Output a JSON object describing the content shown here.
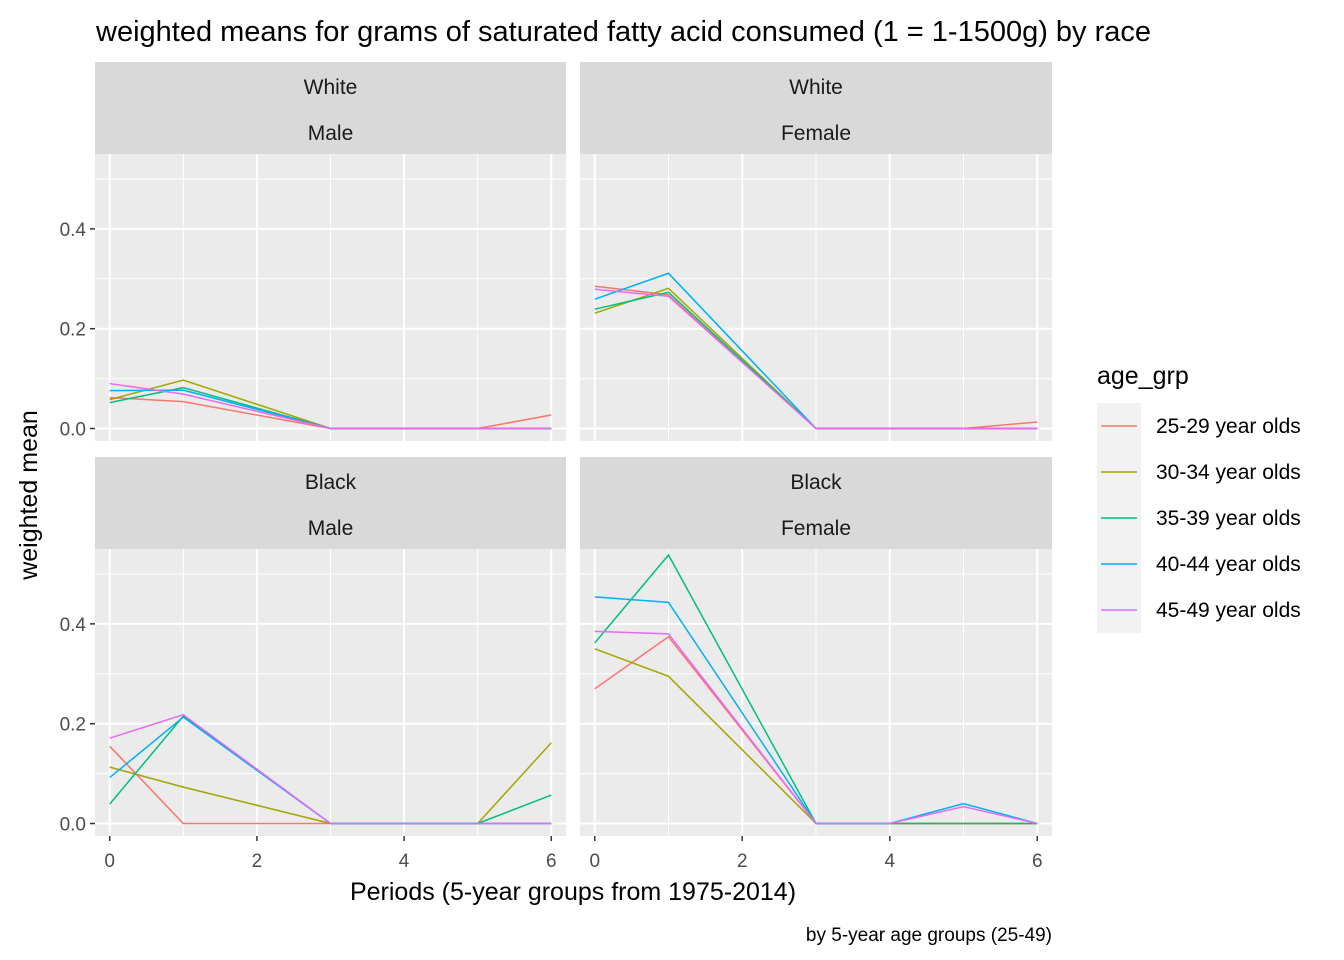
{
  "chart_data": {
    "type": "line",
    "title": "weighted means for grams of saturated fatty acid consumed (1 = 1-1500g) by race",
    "xlabel": "Periods (5-year groups from 1975-2014)",
    "ylabel": "weighted mean",
    "caption": "by 5-year age groups (25-49)",
    "xlim": [
      -0.2,
      6.2
    ],
    "ylim": [
      -0.025,
      0.55
    ],
    "x_ticks": [
      0,
      2,
      4,
      6
    ],
    "x_tick_labels": [
      "0",
      "2",
      "4",
      "6"
    ],
    "y_ticks": [
      0,
      0.2,
      0.4
    ],
    "y_tick_labels": [
      "0.0",
      "0.2",
      "0.4"
    ],
    "grid": true,
    "legend": {
      "title": "age_grp",
      "position": "right",
      "entries": [
        "25-29 year olds",
        "30-34 year olds",
        "35-39 year olds",
        "40-44 year olds",
        "45-49 year olds"
      ]
    },
    "colors": {
      "25-29 year olds": "#F8766D",
      "30-34 year olds": "#A3A500",
      "35-39 year olds": "#00BF7D",
      "40-44 year olds": "#00B0F6",
      "45-49 year olds": "#E76BF3"
    },
    "panels": [
      {
        "race": "White",
        "sex": "Male",
        "series": [
          {
            "name": "25-29 year olds",
            "x": [
              0,
              1,
              3,
              5,
              6
            ],
            "y": [
              0.062,
              0.054,
              0.0,
              0.0,
              0.027
            ]
          },
          {
            "name": "30-34 year olds",
            "x": [
              0,
              1,
              3,
              6
            ],
            "y": [
              0.058,
              0.097,
              0.0,
              0.0
            ]
          },
          {
            "name": "35-39 year olds",
            "x": [
              0,
              1,
              3,
              6
            ],
            "y": [
              0.052,
              0.082,
              0.0,
              0.0
            ]
          },
          {
            "name": "40-44 year olds",
            "x": [
              0,
              1,
              3,
              6
            ],
            "y": [
              0.076,
              0.077,
              0.0,
              0.0
            ]
          },
          {
            "name": "45-49 year olds",
            "x": [
              0,
              1,
              3,
              6
            ],
            "y": [
              0.09,
              0.069,
              0.0,
              0.0
            ]
          }
        ]
      },
      {
        "race": "White",
        "sex": "Female",
        "series": [
          {
            "name": "25-29 year olds",
            "x": [
              0,
              1,
              3,
              5,
              6
            ],
            "y": [
              0.285,
              0.268,
              0.0,
              0.0,
              0.013
            ]
          },
          {
            "name": "30-34 year olds",
            "x": [
              0,
              1,
              3,
              6
            ],
            "y": [
              0.231,
              0.281,
              0.0,
              0.0
            ]
          },
          {
            "name": "35-39 year olds",
            "x": [
              0,
              1,
              3,
              6
            ],
            "y": [
              0.239,
              0.273,
              0.0,
              0.0
            ]
          },
          {
            "name": "40-44 year olds",
            "x": [
              0,
              1,
              3,
              6
            ],
            "y": [
              0.259,
              0.311,
              0.0,
              0.0
            ]
          },
          {
            "name": "45-49 year olds",
            "x": [
              0,
              1,
              3,
              6
            ],
            "y": [
              0.279,
              0.265,
              0.0,
              0.0
            ]
          }
        ]
      },
      {
        "race": "Black",
        "sex": "Male",
        "series": [
          {
            "name": "25-29 year olds",
            "x": [
              0,
              1,
              3,
              6
            ],
            "y": [
              0.155,
              0.0,
              0.0,
              0.0
            ]
          },
          {
            "name": "30-34 year olds",
            "x": [
              0,
              1,
              3,
              5,
              6
            ],
            "y": [
              0.113,
              0.073,
              0.0,
              0.0,
              0.162
            ]
          },
          {
            "name": "35-39 year olds",
            "x": [
              0,
              1,
              3,
              5,
              6
            ],
            "y": [
              0.039,
              0.215,
              0.0,
              0.0,
              0.057
            ]
          },
          {
            "name": "40-44 year olds",
            "x": [
              0,
              1,
              3,
              6
            ],
            "y": [
              0.092,
              0.213,
              0.0,
              0.0
            ]
          },
          {
            "name": "45-49 year olds",
            "x": [
              0,
              1,
              3,
              6
            ],
            "y": [
              0.171,
              0.218,
              0.0,
              0.0
            ]
          }
        ]
      },
      {
        "race": "Black",
        "sex": "Female",
        "series": [
          {
            "name": "25-29 year olds",
            "x": [
              0,
              1,
              3,
              5,
              6
            ],
            "y": [
              0.27,
              0.374,
              0.0,
              0.0,
              0.0
            ]
          },
          {
            "name": "30-34 year olds",
            "x": [
              0,
              1,
              3,
              5,
              6
            ],
            "y": [
              0.35,
              0.295,
              0.0,
              0.0,
              0.0
            ]
          },
          {
            "name": "35-39 year olds",
            "x": [
              0,
              1,
              3,
              5,
              6
            ],
            "y": [
              0.362,
              0.538,
              0.0,
              0.0,
              0.0
            ]
          },
          {
            "name": "40-44 year olds",
            "x": [
              0,
              1,
              3,
              4,
              5,
              6
            ],
            "y": [
              0.454,
              0.443,
              0.0,
              0.0,
              0.04,
              0.0
            ]
          },
          {
            "name": "45-49 year olds",
            "x": [
              0,
              1,
              3,
              4,
              5,
              6
            ],
            "y": [
              0.385,
              0.38,
              0.0,
              0.0,
              0.034,
              0.0
            ]
          }
        ]
      }
    ]
  }
}
